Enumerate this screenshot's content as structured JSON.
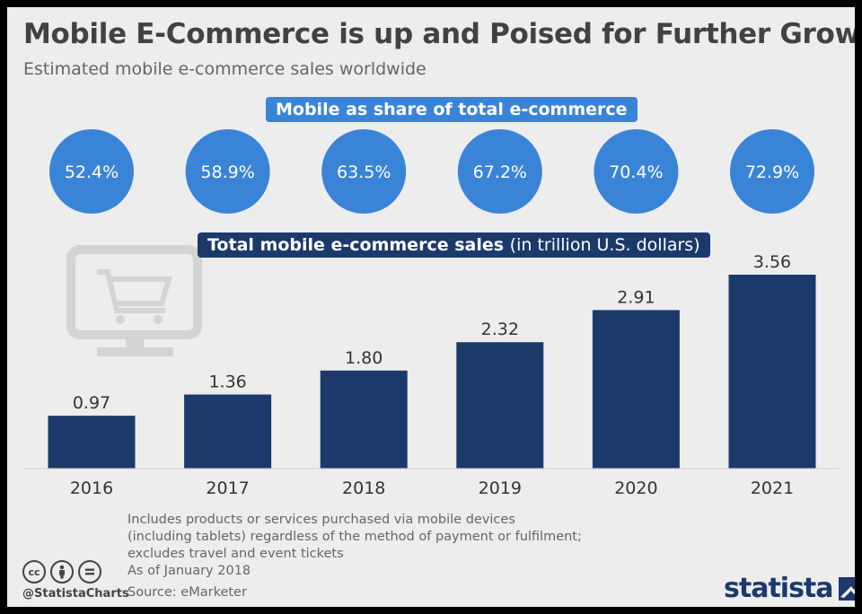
{
  "title": "Mobile E-Commerce is up and Poised for Further Growth",
  "subtitle": "Estimated mobile e-commerce sales worldwide",
  "share_label": "Mobile as share of total e-commerce",
  "sales_label_bold": "Total mobile e-commerce sales",
  "sales_label_light": "(in trillion U.S. dollars)",
  "colors": {
    "bar": "#1b3a6b",
    "circle": "#3a84d8",
    "background": "#ededed",
    "title": "#424242"
  },
  "chart_data": [
    {
      "type": "bar",
      "title": "Total mobile e-commerce sales (in trillion U.S. dollars)",
      "categories": [
        "2016",
        "2017",
        "2018",
        "2019",
        "2020",
        "2021"
      ],
      "values": [
        0.97,
        1.36,
        1.8,
        2.32,
        2.91,
        3.56
      ],
      "value_labels": [
        "0.97",
        "1.36",
        "1.80",
        "2.32",
        "2.91",
        "3.56"
      ],
      "ylim": [
        0,
        3.56
      ],
      "grid": false
    },
    {
      "type": "table",
      "title": "Mobile as share of total e-commerce",
      "categories": [
        "2016",
        "2017",
        "2018",
        "2019",
        "2020",
        "2021"
      ],
      "values": [
        52.4,
        58.9,
        63.5,
        67.2,
        70.4,
        72.9
      ],
      "value_labels": [
        "52.4%",
        "58.9%",
        "63.5%",
        "67.2%",
        "70.4%",
        "72.9%"
      ]
    }
  ],
  "footnote": [
    "Includes products or services purchased via mobile devices",
    "(including tablets) regardless of the method of payment or fulfilment;",
    "excludes travel and event tickets",
    "As of January 2018"
  ],
  "handle": "@StatistaCharts",
  "source": "Source: eMarketer",
  "logo": "statista",
  "icons": [
    "creative-commons-icon",
    "attribution-icon",
    "no-derivatives-icon",
    "cart-monitor-icon"
  ]
}
